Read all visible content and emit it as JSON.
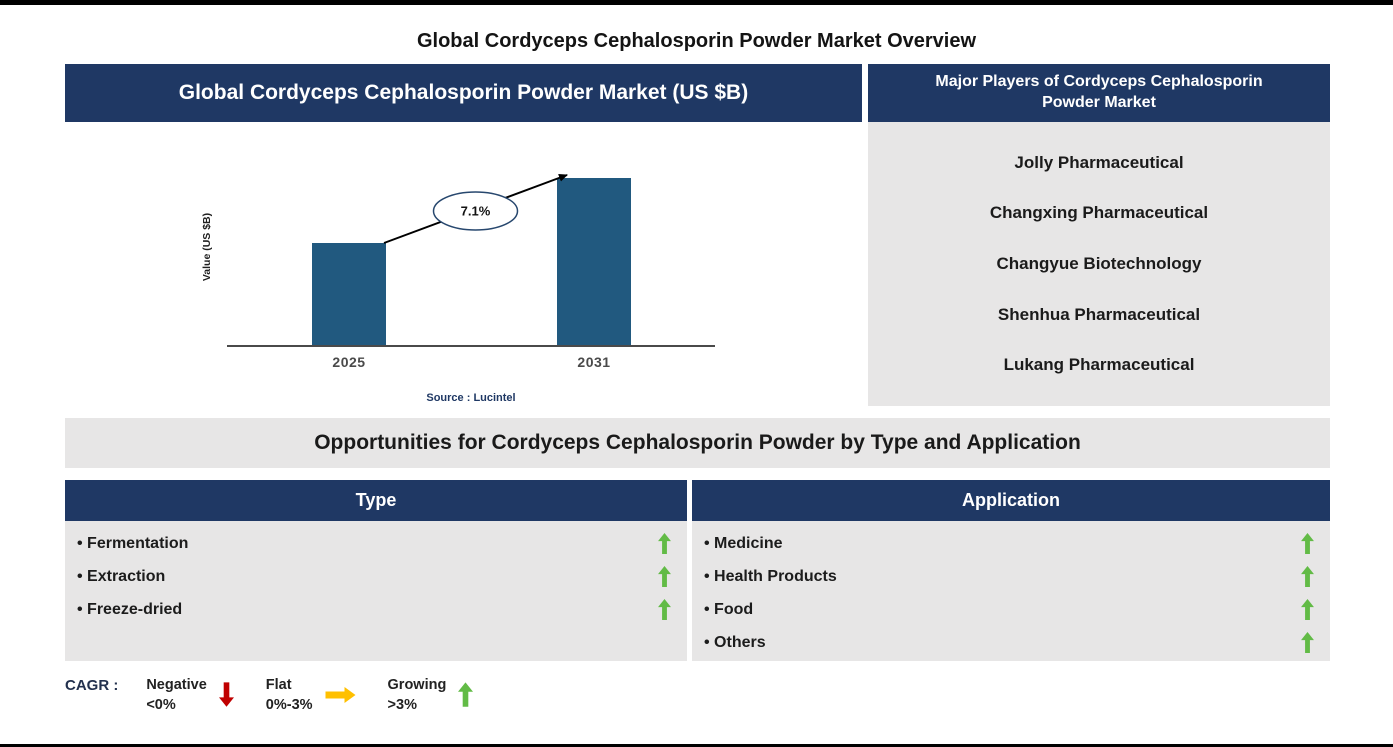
{
  "page": {
    "title": "Global Cordyceps Cephalosporin Powder Market Overview"
  },
  "market_chart": {
    "header": "Global Cordyceps Cephalosporin Powder Market (US $B)",
    "source": "Source : Lucintel"
  },
  "chart_data": {
    "type": "bar",
    "title": "Global Cordyceps Cephalosporin Powder Market (US $B)",
    "xlabel": "",
    "ylabel": "Value (US $B)",
    "categories": [
      "2025",
      "2031"
    ],
    "values": [
      0.61,
      1.0
    ],
    "value_note": "y-axis has no tick labels; values are relative bar heights (2031 bar normalized to 1.0)",
    "ymax": 1.17,
    "cagr_label": "7.1%",
    "annotation": "Growth arrow with 7.1% CAGR bubble from 2025 bar top to 2031 bar top",
    "source": "Source : Lucintel",
    "grid": false,
    "legend_position": "none"
  },
  "players": {
    "header": "Major Players of Cordyceps Cephalosporin Powder Market",
    "items": [
      "Jolly Pharmaceutical",
      "Changxing Pharmaceutical",
      "Changyue Biotechnology",
      "Shenhua Pharmaceutical",
      "Lukang Pharmaceutical"
    ]
  },
  "opportunities": {
    "header": "Opportunities for Cordyceps Cephalosporin Powder by Type and Application",
    "type": {
      "header": "Type",
      "items": [
        {
          "label": "Fermentation",
          "trend": "growing"
        },
        {
          "label": "Extraction",
          "trend": "growing"
        },
        {
          "label": "Freeze-dried",
          "trend": "growing"
        }
      ]
    },
    "application": {
      "header": "Application",
      "items": [
        {
          "label": "Medicine",
          "trend": "growing"
        },
        {
          "label": "Health Products",
          "trend": "growing"
        },
        {
          "label": "Food",
          "trend": "growing"
        },
        {
          "label": "Others",
          "trend": "growing"
        }
      ]
    }
  },
  "legend": {
    "label": "CAGR :",
    "items": [
      {
        "name": "Negative",
        "range": "<0%",
        "direction": "down",
        "color": "#C00000"
      },
      {
        "name": "Flat",
        "range": "0%-3%",
        "direction": "right",
        "color": "#FFC000"
      },
      {
        "name": "Growing",
        "range": ">3%",
        "direction": "up",
        "color": "#62BB46"
      }
    ]
  },
  "colors": {
    "header_bg": "#1F3864",
    "panel_bg": "#E7E6E6",
    "bar": "#21597F",
    "growing": "#62BB46",
    "negative": "#C00000",
    "flat": "#FFC000"
  }
}
